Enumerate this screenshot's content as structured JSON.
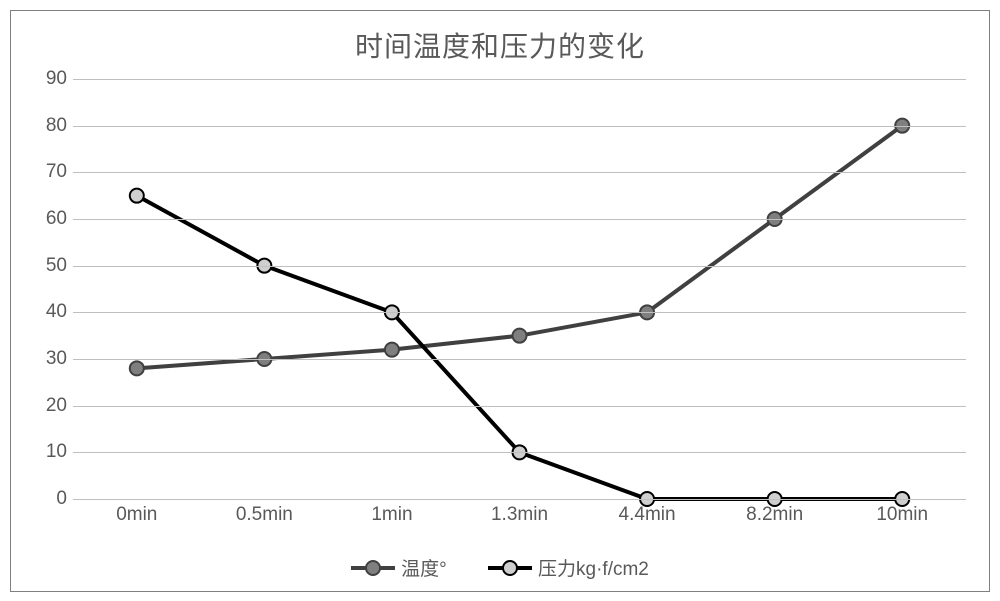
{
  "chart": {
    "type": "line",
    "title": "时间温度和压力的变化",
    "title_fontsize": 28,
    "title_color": "#595959",
    "background_color": "#ffffff",
    "border_color": "#7f7f7f",
    "plot_background": "#ffffff",
    "grid_color": "#bfbfbf",
    "axis_label_color": "#595959",
    "axis_label_fontsize": 19,
    "categories": [
      "0min",
      "0.5min",
      "1min",
      "1.3min",
      "4.4min",
      "8.2min",
      "10min"
    ],
    "ylim": [
      0,
      90
    ],
    "ytick_step": 10,
    "yticks": [
      "0",
      "10",
      "20",
      "30",
      "40",
      "50",
      "60",
      "70",
      "80",
      "90"
    ],
    "series": [
      {
        "name": "温度°",
        "values": [
          28,
          30,
          32,
          35,
          40,
          60,
          80
        ],
        "line_color": "#404040",
        "line_width": 4,
        "marker_fill": "#7f7f7f",
        "marker_border": "#404040",
        "marker_radius": 7
      },
      {
        "name": "压力kg·f/cm2",
        "values": [
          65,
          50,
          40,
          10,
          0,
          0,
          0
        ],
        "line_color": "#000000",
        "line_width": 4,
        "marker_fill": "#cfcfcf",
        "marker_border": "#000000",
        "marker_radius": 7
      }
    ],
    "legend": {
      "position": "bottom",
      "items": [
        {
          "label": "温度°",
          "line_color": "#404040",
          "marker_fill": "#7f7f7f",
          "marker_border": "#404040"
        },
        {
          "label": "压力kg·f/cm2",
          "line_color": "#000000",
          "marker_fill": "#cfcfcf",
          "marker_border": "#000000"
        }
      ]
    }
  }
}
